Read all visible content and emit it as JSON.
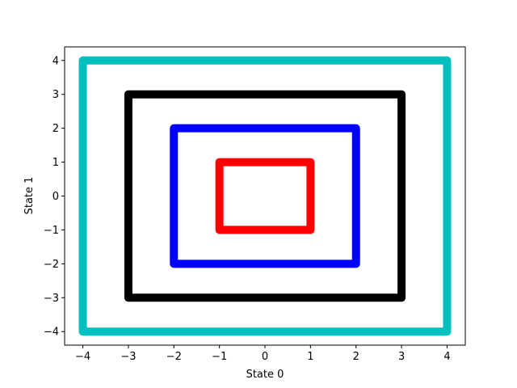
{
  "chart_data": {
    "type": "line",
    "title": "",
    "xlabel": "State 0",
    "ylabel": "State 1",
    "xlim": [
      -4.4,
      4.4
    ],
    "ylim": [
      -4.4,
      4.4
    ],
    "xticks": [
      -4,
      -3,
      -2,
      -1,
      0,
      1,
      2,
      3,
      4
    ],
    "yticks": [
      -4,
      -3,
      -2,
      -1,
      0,
      1,
      2,
      3,
      4
    ],
    "xtick_labels": [
      "−4",
      "−3",
      "−2",
      "−1",
      "0",
      "1",
      "2",
      "3",
      "4"
    ],
    "ytick_labels": [
      "−4",
      "−3",
      "−2",
      "−1",
      "0",
      "1",
      "2",
      "3",
      "4"
    ],
    "grid": false,
    "legend": "none",
    "series": [
      {
        "color": "#00bfbf",
        "x": [
          -4,
          4,
          4,
          -4,
          -4
        ],
        "y": [
          4,
          4,
          -4,
          -4,
          4
        ]
      },
      {
        "color": "#000000",
        "x": [
          -3,
          3,
          3,
          -3,
          -3
        ],
        "y": [
          3,
          3,
          -3,
          -3,
          3
        ]
      },
      {
        "color": "#0000ff",
        "x": [
          -2,
          2,
          2,
          -2,
          -2
        ],
        "y": [
          2,
          2,
          -2,
          -2,
          2
        ]
      },
      {
        "color": "#ff0000",
        "x": [
          -1,
          1,
          1,
          -1,
          -1
        ],
        "y": [
          1,
          1,
          -1,
          -1,
          1
        ]
      }
    ]
  }
}
